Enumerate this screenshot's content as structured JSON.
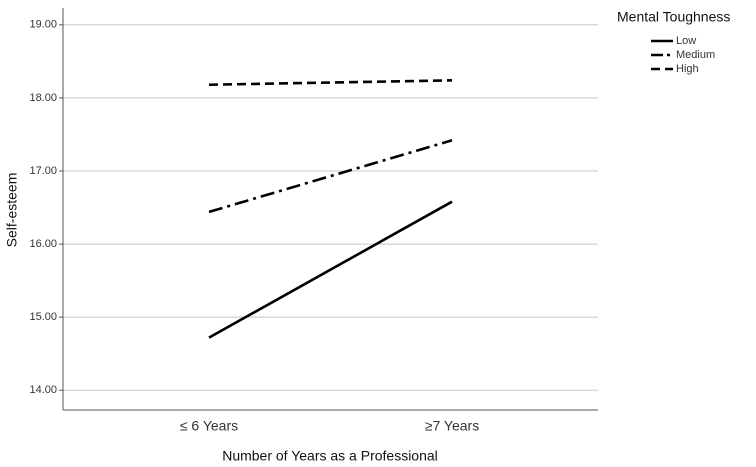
{
  "chart_data": {
    "type": "line",
    "x_label": "Number of Years as a Professional",
    "y_label": "Self-esteem",
    "legend_title": "Mental Toughness",
    "legend_position": "top-right",
    "categories": [
      "≤ 6 Years",
      "≥7 Years"
    ],
    "series": [
      {
        "name": "Low",
        "color": "#000000",
        "dash": "solid",
        "values": [
          14.72,
          16.58
        ]
      },
      {
        "name": "Medium",
        "color": "#000000",
        "dash": "dashdot",
        "values": [
          16.44,
          17.42
        ]
      },
      {
        "name": "High",
        "color": "#000000",
        "dash": "dashed",
        "values": [
          18.18,
          18.24
        ]
      }
    ],
    "ylim": [
      13.73,
      19.23
    ],
    "yticks": [
      {
        "value": 14,
        "label": "14.00"
      },
      {
        "value": 15,
        "label": "15.00"
      },
      {
        "value": 16,
        "label": "16.00"
      },
      {
        "value": 17,
        "label": "17.00"
      },
      {
        "value": 18,
        "label": "18.00"
      },
      {
        "value": 19,
        "label": "19.00"
      }
    ],
    "grid": true
  }
}
